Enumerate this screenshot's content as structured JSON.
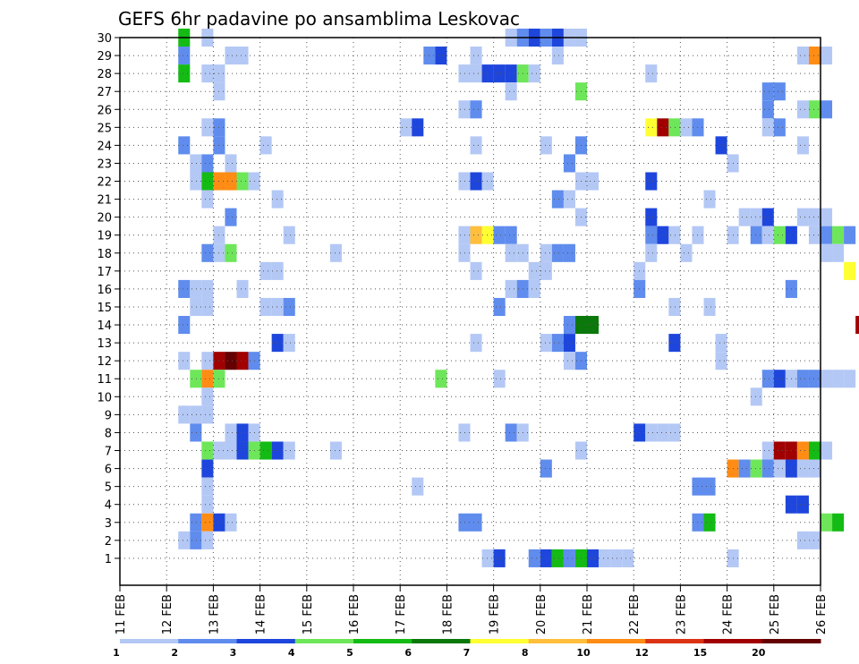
{
  "chart_data": {
    "type": "heatmap",
    "title": "GEFS 6hr padavine po ansamblima Leskovac",
    "x_ticks": [
      "11 FEB",
      "12 FEB",
      "13 FEB",
      "14 FEB",
      "15 FEB",
      "16 FEB",
      "17 FEB",
      "18 FEB",
      "19 FEB",
      "20 FEB",
      "21 FEB",
      "22 FEB",
      "23 FEB",
      "24 FEB",
      "25 FEB",
      "26 FEB"
    ],
    "y_ticks": [
      "1",
      "2",
      "3",
      "4",
      "5",
      "6",
      "7",
      "8",
      "9",
      "10",
      "11",
      "12",
      "13",
      "14",
      "15",
      "16",
      "17",
      "18",
      "19",
      "20",
      "21",
      "22",
      "23",
      "24",
      "25",
      "26",
      "27",
      "28",
      "29",
      "30"
    ],
    "xlim": [
      "11 FEB 00Z",
      "26 FEB 00Z"
    ],
    "ylim": [
      0,
      30
    ],
    "time_step_hours": 6,
    "grid": "dotted",
    "legend": {
      "placement": "bottom",
      "labels": [
        "1",
        "2",
        "3",
        "4",
        "5",
        "6",
        "7",
        "8",
        "10",
        "12",
        "15",
        "20"
      ],
      "colors": [
        "#b4c8f5",
        "#5f8ced",
        "#1e46dc",
        "#6ee65a",
        "#14bb14",
        "#0a780a",
        "#ffff32",
        "#ffbe3c",
        "#ff8c14",
        "#dc3214",
        "#a00000",
        "#640000"
      ]
    },
    "cells": [
      [
        1.25,
        30,
        5
      ],
      [
        1.75,
        30,
        1
      ],
      [
        8.25,
        30,
        1
      ],
      [
        8.5,
        30,
        2
      ],
      [
        8.75,
        30,
        3
      ],
      [
        9,
        30,
        2
      ],
      [
        9.25,
        30,
        3
      ],
      [
        9.5,
        30,
        1
      ],
      [
        9.75,
        30,
        1
      ],
      [
        1.25,
        29,
        2
      ],
      [
        2.25,
        29,
        1
      ],
      [
        2.5,
        29,
        1
      ],
      [
        6.5,
        29,
        2
      ],
      [
        6.75,
        29,
        3
      ],
      [
        7.5,
        29,
        1
      ],
      [
        9.25,
        29,
        1
      ],
      [
        14.5,
        29,
        1
      ],
      [
        14.75,
        29,
        9
      ],
      [
        15,
        29,
        1
      ],
      [
        1.25,
        28,
        5
      ],
      [
        1.75,
        28,
        1
      ],
      [
        2,
        28,
        1
      ],
      [
        7.25,
        28,
        1
      ],
      [
        7.5,
        28,
        1
      ],
      [
        7.75,
        28,
        3
      ],
      [
        8,
        28,
        3
      ],
      [
        8.25,
        28,
        3
      ],
      [
        8.5,
        28,
        4
      ],
      [
        8.75,
        28,
        1
      ],
      [
        11.25,
        28,
        1
      ],
      [
        2,
        27,
        1
      ],
      [
        8.25,
        27,
        1
      ],
      [
        9.75,
        27,
        4
      ],
      [
        13.75,
        27,
        2
      ],
      [
        14,
        27,
        2
      ],
      [
        7.25,
        26,
        1
      ],
      [
        7.5,
        26,
        2
      ],
      [
        13.75,
        26,
        2
      ],
      [
        14.5,
        26,
        1
      ],
      [
        14.75,
        26,
        4
      ],
      [
        15,
        26,
        2
      ],
      [
        1.75,
        25,
        1
      ],
      [
        2,
        25,
        2
      ],
      [
        6,
        25,
        1
      ],
      [
        6.25,
        25,
        3
      ],
      [
        11.25,
        25,
        7
      ],
      [
        11.5,
        25,
        11
      ],
      [
        11.75,
        25,
        4
      ],
      [
        12,
        25,
        1
      ],
      [
        12.25,
        25,
        2
      ],
      [
        13.75,
        25,
        1
      ],
      [
        14,
        25,
        2
      ],
      [
        1.25,
        24,
        2
      ],
      [
        2,
        24,
        2
      ],
      [
        3,
        24,
        1
      ],
      [
        7.5,
        24,
        1
      ],
      [
        9,
        24,
        1
      ],
      [
        9.75,
        24,
        2
      ],
      [
        12.75,
        24,
        3
      ],
      [
        14.5,
        24,
        1
      ],
      [
        1.5,
        23,
        1
      ],
      [
        1.75,
        23,
        2
      ],
      [
        2.25,
        23,
        1
      ],
      [
        9.5,
        23,
        2
      ],
      [
        13,
        23,
        1
      ],
      [
        1.5,
        22,
        1
      ],
      [
        1.75,
        22,
        5
      ],
      [
        2,
        22,
        9
      ],
      [
        2.25,
        22,
        9
      ],
      [
        2.5,
        22,
        4
      ],
      [
        2.75,
        22,
        1
      ],
      [
        7.25,
        22,
        1
      ],
      [
        7.5,
        22,
        3
      ],
      [
        7.75,
        22,
        1
      ],
      [
        9.75,
        22,
        1
      ],
      [
        10,
        22,
        1
      ],
      [
        11.25,
        22,
        3
      ],
      [
        1.75,
        21,
        1
      ],
      [
        3.25,
        21,
        1
      ],
      [
        9.25,
        21,
        2
      ],
      [
        9.5,
        21,
        1
      ],
      [
        12.5,
        21,
        1
      ],
      [
        2.25,
        20,
        2
      ],
      [
        9.75,
        20,
        1
      ],
      [
        11.25,
        20,
        3
      ],
      [
        13.25,
        20,
        1
      ],
      [
        13.5,
        20,
        1
      ],
      [
        13.75,
        20,
        3
      ],
      [
        14.5,
        20,
        1
      ],
      [
        14.75,
        20,
        1
      ],
      [
        15,
        20,
        1
      ],
      [
        2,
        19,
        1
      ],
      [
        3.5,
        19,
        1
      ],
      [
        7.25,
        19,
        1
      ],
      [
        7.5,
        19,
        8
      ],
      [
        7.75,
        19,
        7
      ],
      [
        8,
        19,
        2
      ],
      [
        8.25,
        19,
        2
      ],
      [
        11.25,
        19,
        2
      ],
      [
        11.5,
        19,
        3
      ],
      [
        11.75,
        19,
        1
      ],
      [
        12.25,
        19,
        1
      ],
      [
        13,
        19,
        1
      ],
      [
        13.5,
        19,
        2
      ],
      [
        13.75,
        19,
        1
      ],
      [
        14,
        19,
        4
      ],
      [
        14.25,
        19,
        3
      ],
      [
        14.75,
        19,
        1
      ],
      [
        15,
        19,
        2
      ],
      [
        15.25,
        19,
        4
      ],
      [
        15.5,
        19,
        2
      ],
      [
        1.75,
        18,
        2
      ],
      [
        2,
        18,
        1
      ],
      [
        2.25,
        18,
        4
      ],
      [
        4.5,
        18,
        1
      ],
      [
        7.25,
        18,
        1
      ],
      [
        8.25,
        18,
        1
      ],
      [
        8.5,
        18,
        1
      ],
      [
        9,
        18,
        1
      ],
      [
        9.25,
        18,
        2
      ],
      [
        9.5,
        18,
        2
      ],
      [
        11.25,
        18,
        1
      ],
      [
        12,
        18,
        1
      ],
      [
        15,
        18,
        1
      ],
      [
        15.25,
        18,
        1
      ],
      [
        3,
        17,
        1
      ],
      [
        3.25,
        17,
        1
      ],
      [
        7.5,
        17,
        1
      ],
      [
        8.75,
        17,
        1
      ],
      [
        9,
        17,
        1
      ],
      [
        11,
        17,
        1
      ],
      [
        15.5,
        17,
        7
      ],
      [
        1.25,
        16,
        2
      ],
      [
        1.5,
        16,
        1
      ],
      [
        1.75,
        16,
        1
      ],
      [
        2.5,
        16,
        1
      ],
      [
        8.25,
        16,
        1
      ],
      [
        8.5,
        16,
        2
      ],
      [
        8.75,
        16,
        1
      ],
      [
        11,
        16,
        2
      ],
      [
        14.25,
        16,
        2
      ],
      [
        1.5,
        15,
        1
      ],
      [
        1.75,
        15,
        1
      ],
      [
        3,
        15,
        1
      ],
      [
        3.25,
        15,
        1
      ],
      [
        3.5,
        15,
        2
      ],
      [
        8,
        15,
        2
      ],
      [
        11.75,
        15,
        1
      ],
      [
        12.5,
        15,
        1
      ],
      [
        1.25,
        14,
        2
      ],
      [
        9.5,
        14,
        2
      ],
      [
        9.75,
        14,
        6
      ],
      [
        10,
        14,
        6
      ],
      [
        15.75,
        14,
        11
      ],
      [
        3.25,
        13,
        3
      ],
      [
        3.5,
        13,
        1
      ],
      [
        7.5,
        13,
        1
      ],
      [
        9,
        13,
        1
      ],
      [
        9.25,
        13,
        2
      ],
      [
        9.5,
        13,
        3
      ],
      [
        11.75,
        13,
        3
      ],
      [
        12.75,
        13,
        1
      ],
      [
        1.25,
        12,
        1
      ],
      [
        1.75,
        12,
        1
      ],
      [
        2,
        12,
        11
      ],
      [
        2.25,
        12,
        12
      ],
      [
        2.5,
        12,
        11
      ],
      [
        2.75,
        12,
        2
      ],
      [
        9.5,
        12,
        1
      ],
      [
        9.75,
        12,
        2
      ],
      [
        12.75,
        12,
        1
      ],
      [
        1.5,
        11,
        4
      ],
      [
        1.75,
        11,
        9
      ],
      [
        2,
        11,
        4
      ],
      [
        6.75,
        11,
        4
      ],
      [
        8,
        11,
        1
      ],
      [
        13.75,
        11,
        2
      ],
      [
        14,
        11,
        3
      ],
      [
        14.25,
        11,
        1
      ],
      [
        14.5,
        11,
        2
      ],
      [
        14.75,
        11,
        2
      ],
      [
        15,
        11,
        1
      ],
      [
        15.25,
        11,
        1
      ],
      [
        15.5,
        11,
        1
      ],
      [
        1.75,
        10,
        1
      ],
      [
        13.5,
        10,
        1
      ],
      [
        1.25,
        9,
        1
      ],
      [
        1.5,
        9,
        1
      ],
      [
        1.75,
        9,
        1
      ],
      [
        1.5,
        8,
        2
      ],
      [
        2.25,
        8,
        1
      ],
      [
        2.5,
        8,
        3
      ],
      [
        2.75,
        8,
        1
      ],
      [
        7.25,
        8,
        1
      ],
      [
        8.25,
        8,
        2
      ],
      [
        8.5,
        8,
        1
      ],
      [
        11,
        8,
        3
      ],
      [
        11.25,
        8,
        1
      ],
      [
        11.5,
        8,
        1
      ],
      [
        11.75,
        8,
        1
      ],
      [
        1.75,
        7,
        4
      ],
      [
        2,
        7,
        1
      ],
      [
        2.25,
        7,
        1
      ],
      [
        2.5,
        7,
        3
      ],
      [
        2.75,
        7,
        4
      ],
      [
        3,
        7,
        5
      ],
      [
        3.25,
        7,
        3
      ],
      [
        3.5,
        7,
        1
      ],
      [
        4.5,
        7,
        1
      ],
      [
        9.75,
        7,
        1
      ],
      [
        13.75,
        7,
        1
      ],
      [
        14,
        7,
        11
      ],
      [
        14.25,
        7,
        11
      ],
      [
        14.5,
        7,
        9
      ],
      [
        14.75,
        7,
        5
      ],
      [
        15,
        7,
        1
      ],
      [
        1.75,
        6,
        3
      ],
      [
        9,
        6,
        2
      ],
      [
        13,
        6,
        9
      ],
      [
        13.25,
        6,
        2
      ],
      [
        13.5,
        6,
        4
      ],
      [
        13.75,
        6,
        2
      ],
      [
        14,
        6,
        1
      ],
      [
        14.25,
        6,
        3
      ],
      [
        14.5,
        6,
        1
      ],
      [
        14.75,
        6,
        1
      ],
      [
        1.75,
        5,
        1
      ],
      [
        6.25,
        5,
        1
      ],
      [
        12.25,
        5,
        2
      ],
      [
        12.5,
        5,
        2
      ],
      [
        1.75,
        4,
        1
      ],
      [
        14.25,
        4,
        3
      ],
      [
        14.5,
        4,
        3
      ],
      [
        1.5,
        3,
        2
      ],
      [
        1.75,
        3,
        9
      ],
      [
        2,
        3,
        3
      ],
      [
        2.25,
        3,
        1
      ],
      [
        7.25,
        3,
        2
      ],
      [
        7.5,
        3,
        2
      ],
      [
        12.25,
        3,
        2
      ],
      [
        12.5,
        3,
        5
      ],
      [
        15,
        3,
        4
      ],
      [
        15.25,
        3,
        5
      ],
      [
        1.25,
        2,
        1
      ],
      [
        1.5,
        2,
        2
      ],
      [
        1.75,
        2,
        1
      ],
      [
        14.5,
        2,
        1
      ],
      [
        14.75,
        2,
        1
      ],
      [
        7.75,
        1,
        1
      ],
      [
        8,
        1,
        3
      ],
      [
        8.75,
        1,
        2
      ],
      [
        9,
        1,
        3
      ],
      [
        9.25,
        1,
        5
      ],
      [
        9.5,
        1,
        2
      ],
      [
        9.75,
        1,
        5
      ],
      [
        10,
        1,
        3
      ],
      [
        10.25,
        1,
        1
      ],
      [
        10.5,
        1,
        1
      ],
      [
        10.75,
        1,
        1
      ],
      [
        13,
        1,
        1
      ]
    ]
  }
}
